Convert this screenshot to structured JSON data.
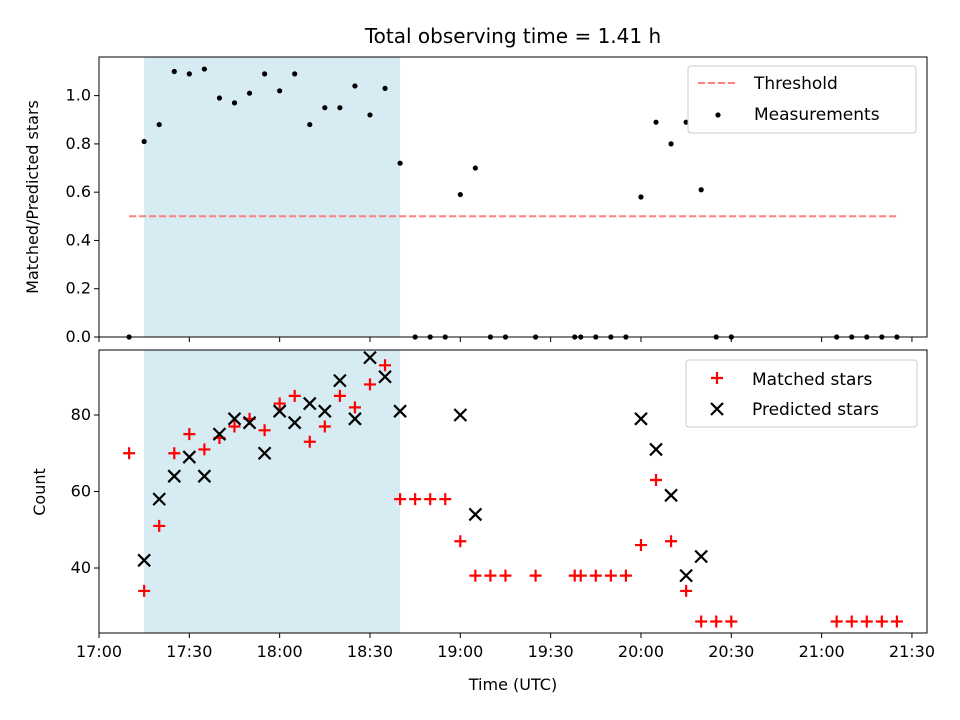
{
  "chart_data": [
    {
      "type": "scatter",
      "title": "Total observing time = 1.41 h",
      "ylabel": "Matched/Predicted stars",
      "xlim": [
        "17:00",
        "21:35"
      ],
      "ylim": [
        0,
        1.16
      ],
      "yticks": [
        0.0,
        0.2,
        0.4,
        0.6,
        0.8,
        1.0
      ],
      "ytick_labels": [
        "0.0",
        "0.2",
        "0.4",
        "0.6",
        "0.8",
        "1.0"
      ],
      "shaded_span": {
        "x0": "17:15",
        "x1": "18:40",
        "color": "#add8e6"
      },
      "threshold": {
        "name": "Threshold",
        "y": 0.5,
        "x0": "17:10",
        "x1": "21:25",
        "color": "#ff7f7f"
      },
      "legend": {
        "location": "top-right",
        "entries": [
          "Threshold",
          "Measurements"
        ]
      },
      "series": [
        {
          "name": "Measurements",
          "color": "#000000",
          "x": [
            "17:10",
            "17:15",
            "17:20",
            "17:25",
            "17:30",
            "17:35",
            "17:40",
            "17:45",
            "17:50",
            "17:55",
            "18:00",
            "18:05",
            "18:10",
            "18:15",
            "18:20",
            "18:25",
            "18:30",
            "18:35",
            "18:40",
            "18:45",
            "18:50",
            "18:55",
            "19:00",
            "19:05",
            "19:10",
            "19:15",
            "19:25",
            "19:38",
            "19:40",
            "19:45",
            "19:50",
            "19:55",
            "20:00",
            "20:05",
            "20:10",
            "20:15",
            "20:20",
            "20:25",
            "20:30",
            "21:05",
            "21:10",
            "21:15",
            "21:20",
            "21:25"
          ],
          "y": [
            0.0,
            0.81,
            0.88,
            1.1,
            1.09,
            1.11,
            0.99,
            0.97,
            1.01,
            1.09,
            1.02,
            1.09,
            0.88,
            0.95,
            0.95,
            1.04,
            0.92,
            1.03,
            0.72,
            0.0,
            0.0,
            0.0,
            0.59,
            0.7,
            0.0,
            0.0,
            0.0,
            0.0,
            0.0,
            0.0,
            0.0,
            0.0,
            0.58,
            0.89,
            0.8,
            0.89,
            0.61,
            0.0,
            0.0,
            0.0,
            0.0,
            0.0,
            0.0,
            0.0
          ]
        }
      ]
    },
    {
      "type": "scatter",
      "xlabel": "Time (UTC)",
      "ylabel": "Count",
      "xlim": [
        "17:00",
        "21:35"
      ],
      "ylim": [
        23,
        97
      ],
      "yticks": [
        40,
        60,
        80
      ],
      "xticks": [
        "17:00",
        "17:30",
        "18:00",
        "18:30",
        "19:00",
        "19:30",
        "20:00",
        "20:30",
        "21:00",
        "21:30"
      ],
      "shaded_span": {
        "x0": "17:15",
        "x1": "18:40",
        "color": "#add8e6"
      },
      "legend": {
        "location": "top-right",
        "entries": [
          "Matched stars",
          "Predicted stars"
        ]
      },
      "series": [
        {
          "name": "Matched stars",
          "marker": "plus",
          "color": "#ff0000",
          "x": [
            "17:10",
            "17:15",
            "17:20",
            "17:25",
            "17:30",
            "17:35",
            "17:40",
            "17:45",
            "17:50",
            "17:55",
            "18:00",
            "18:05",
            "18:10",
            "18:15",
            "18:20",
            "18:25",
            "18:30",
            "18:35",
            "18:40",
            "18:45",
            "18:50",
            "18:55",
            "19:00",
            "19:05",
            "19:10",
            "19:15",
            "19:25",
            "19:38",
            "19:40",
            "19:45",
            "19:50",
            "19:55",
            "20:00",
            "20:05",
            "20:10",
            "20:15",
            "20:20",
            "20:25",
            "20:30",
            "21:05",
            "21:10",
            "21:15",
            "21:20",
            "21:25"
          ],
          "y": [
            70,
            34,
            51,
            70,
            75,
            71,
            74,
            77,
            79,
            76,
            83,
            85,
            73,
            77,
            85,
            82,
            88,
            93,
            58,
            58,
            58,
            58,
            47,
            38,
            38,
            38,
            38,
            38,
            38,
            38,
            38,
            38,
            46,
            63,
            47,
            34,
            26,
            26,
            26,
            26,
            26,
            26,
            26,
            26
          ]
        },
        {
          "name": "Predicted stars",
          "marker": "x",
          "color": "#000000",
          "x": [
            "17:15",
            "17:20",
            "17:25",
            "17:30",
            "17:35",
            "17:40",
            "17:45",
            "17:50",
            "17:55",
            "18:00",
            "18:05",
            "18:10",
            "18:15",
            "18:20",
            "18:25",
            "18:30",
            "18:35",
            "18:40",
            "19:00",
            "19:05",
            "20:00",
            "20:05",
            "20:10",
            "20:15",
            "20:20"
          ],
          "y": [
            42,
            58,
            64,
            69,
            64,
            75,
            79,
            78,
            70,
            81,
            78,
            83,
            81,
            89,
            79,
            95,
            90,
            81,
            80,
            54,
            79,
            71,
            59,
            38,
            43
          ]
        }
      ]
    }
  ]
}
